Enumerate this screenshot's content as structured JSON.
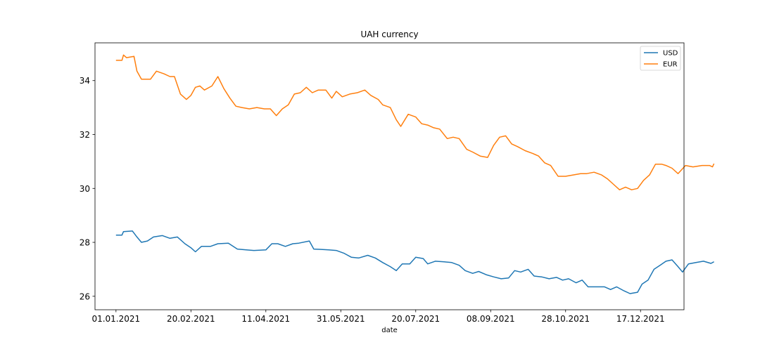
{
  "chart_data": {
    "type": "line",
    "title": "UAH currency",
    "xlabel": "date",
    "ylabel": "",
    "x_ticks": [
      "01.01.2021",
      "20.02.2021",
      "11.04.2021",
      "31.05.2021",
      "20.07.2021",
      "08.09.2021",
      "28.10.2021",
      "17.12.2021"
    ],
    "xlim": [
      "2020-12-18",
      "2022-01-15"
    ],
    "y_ticks": [
      "26",
      "28",
      "30",
      "32",
      "34"
    ],
    "ylim": [
      25.5,
      35.4
    ],
    "grid": false,
    "legend": "top-right",
    "series": [
      {
        "name": "USD",
        "color": "#1f77b4",
        "points": [
          [
            "2021-01-01",
            28.27
          ],
          [
            "2021-01-05",
            28.27
          ],
          [
            "2021-01-06",
            28.4
          ],
          [
            "2021-01-12",
            28.42
          ],
          [
            "2021-01-15",
            28.2
          ],
          [
            "2021-01-18",
            28.0
          ],
          [
            "2021-01-22",
            28.05
          ],
          [
            "2021-01-26",
            28.2
          ],
          [
            "2021-02-01",
            28.25
          ],
          [
            "2021-02-06",
            28.15
          ],
          [
            "2021-02-11",
            28.2
          ],
          [
            "2021-02-16",
            27.95
          ],
          [
            "2021-02-20",
            27.8
          ],
          [
            "2021-02-23",
            27.65
          ],
          [
            "2021-02-27",
            27.85
          ],
          [
            "2021-03-05",
            27.85
          ],
          [
            "2021-03-10",
            27.95
          ],
          [
            "2021-03-17",
            27.97
          ],
          [
            "2021-03-23",
            27.75
          ],
          [
            "2021-03-29",
            27.72
          ],
          [
            "2021-04-03",
            27.7
          ],
          [
            "2021-04-11",
            27.72
          ],
          [
            "2021-04-15",
            27.95
          ],
          [
            "2021-04-19",
            27.95
          ],
          [
            "2021-04-24",
            27.85
          ],
          [
            "2021-04-29",
            27.95
          ],
          [
            "2021-05-03",
            27.97
          ],
          [
            "2021-05-10",
            28.05
          ],
          [
            "2021-05-13",
            27.75
          ],
          [
            "2021-05-17",
            27.74
          ],
          [
            "2021-05-23",
            27.72
          ],
          [
            "2021-05-28",
            27.7
          ],
          [
            "2021-06-02",
            27.6
          ],
          [
            "2021-06-07",
            27.45
          ],
          [
            "2021-06-12",
            27.42
          ],
          [
            "2021-06-18",
            27.52
          ],
          [
            "2021-06-23",
            27.42
          ],
          [
            "2021-06-28",
            27.25
          ],
          [
            "2021-07-03",
            27.1
          ],
          [
            "2021-07-07",
            26.95
          ],
          [
            "2021-07-11",
            27.2
          ],
          [
            "2021-07-16",
            27.2
          ],
          [
            "2021-07-20",
            27.45
          ],
          [
            "2021-07-25",
            27.4
          ],
          [
            "2021-07-28",
            27.2
          ],
          [
            "2021-08-02",
            27.3
          ],
          [
            "2021-08-08",
            27.28
          ],
          [
            "2021-08-13",
            27.25
          ],
          [
            "2021-08-18",
            27.15
          ],
          [
            "2021-08-22",
            26.95
          ],
          [
            "2021-08-27",
            26.85
          ],
          [
            "2021-08-31",
            26.92
          ],
          [
            "2021-09-05",
            26.8
          ],
          [
            "2021-09-10",
            26.72
          ],
          [
            "2021-09-15",
            26.65
          ],
          [
            "2021-09-20",
            26.68
          ],
          [
            "2021-09-24",
            26.95
          ],
          [
            "2021-09-28",
            26.9
          ],
          [
            "2021-10-03",
            27.0
          ],
          [
            "2021-10-07",
            26.75
          ],
          [
            "2021-10-12",
            26.72
          ],
          [
            "2021-10-17",
            26.65
          ],
          [
            "2021-10-22",
            26.7
          ],
          [
            "2021-10-26",
            26.6
          ],
          [
            "2021-10-30",
            26.65
          ],
          [
            "2021-11-04",
            26.5
          ],
          [
            "2021-11-08",
            26.6
          ],
          [
            "2021-11-12",
            26.35
          ],
          [
            "2021-11-18",
            26.35
          ],
          [
            "2021-11-23",
            26.35
          ],
          [
            "2021-11-27",
            26.25
          ],
          [
            "2021-12-01",
            26.35
          ],
          [
            "2021-12-06",
            26.2
          ],
          [
            "2021-12-10",
            26.1
          ],
          [
            "2021-12-15",
            26.15
          ],
          [
            "2021-12-18",
            26.45
          ],
          [
            "2021-12-22",
            26.6
          ],
          [
            "2021-12-26",
            27.0
          ],
          [
            "2021-12-30",
            27.15
          ],
          [
            "2022-01-03",
            27.3
          ],
          [
            "2022-01-07",
            27.35
          ],
          [
            "2022-01-11",
            27.1
          ],
          [
            "2022-01-14",
            26.9
          ],
          [
            "2022-01-18",
            27.2
          ],
          [
            "2022-01-23",
            27.25
          ],
          [
            "2022-01-28",
            27.3
          ],
          [
            "2022-02-02",
            27.22
          ],
          [
            "2022-02-04",
            27.28
          ]
        ]
      },
      {
        "name": "EUR",
        "color": "#ff7f0e",
        "points": [
          [
            "2021-01-01",
            34.75
          ],
          [
            "2021-01-05",
            34.75
          ],
          [
            "2021-01-06",
            34.95
          ],
          [
            "2021-01-08",
            34.85
          ],
          [
            "2021-01-13",
            34.9
          ],
          [
            "2021-01-15",
            34.35
          ],
          [
            "2021-01-18",
            34.05
          ],
          [
            "2021-01-24",
            34.05
          ],
          [
            "2021-01-28",
            34.35
          ],
          [
            "2021-02-02",
            34.25
          ],
          [
            "2021-02-06",
            34.15
          ],
          [
            "2021-02-09",
            34.15
          ],
          [
            "2021-02-13",
            33.5
          ],
          [
            "2021-02-17",
            33.3
          ],
          [
            "2021-02-20",
            33.45
          ],
          [
            "2021-02-23",
            33.75
          ],
          [
            "2021-02-26",
            33.8
          ],
          [
            "2021-03-01",
            33.65
          ],
          [
            "2021-03-06",
            33.8
          ],
          [
            "2021-03-10",
            34.15
          ],
          [
            "2021-03-14",
            33.7
          ],
          [
            "2021-03-18",
            33.35
          ],
          [
            "2021-03-22",
            33.05
          ],
          [
            "2021-03-26",
            33.0
          ],
          [
            "2021-03-31",
            32.95
          ],
          [
            "2021-04-05",
            33.0
          ],
          [
            "2021-04-10",
            32.95
          ],
          [
            "2021-04-14",
            32.95
          ],
          [
            "2021-04-18",
            32.7
          ],
          [
            "2021-04-22",
            32.95
          ],
          [
            "2021-04-26",
            33.1
          ],
          [
            "2021-04-30",
            33.5
          ],
          [
            "2021-05-04",
            33.55
          ],
          [
            "2021-05-08",
            33.75
          ],
          [
            "2021-05-12",
            33.55
          ],
          [
            "2021-05-16",
            33.65
          ],
          [
            "2021-05-21",
            33.65
          ],
          [
            "2021-05-25",
            33.35
          ],
          [
            "2021-05-28",
            33.6
          ],
          [
            "2021-06-01",
            33.4
          ],
          [
            "2021-06-06",
            33.5
          ],
          [
            "2021-06-11",
            33.55
          ],
          [
            "2021-06-16",
            33.65
          ],
          [
            "2021-06-20",
            33.45
          ],
          [
            "2021-06-25",
            33.3
          ],
          [
            "2021-06-28",
            33.1
          ],
          [
            "2021-07-03",
            33.0
          ],
          [
            "2021-07-07",
            32.55
          ],
          [
            "2021-07-10",
            32.3
          ],
          [
            "2021-07-15",
            32.75
          ],
          [
            "2021-07-20",
            32.65
          ],
          [
            "2021-07-24",
            32.4
          ],
          [
            "2021-07-28",
            32.35
          ],
          [
            "2021-08-01",
            32.25
          ],
          [
            "2021-08-05",
            32.2
          ],
          [
            "2021-08-10",
            31.85
          ],
          [
            "2021-08-14",
            31.9
          ],
          [
            "2021-08-18",
            31.85
          ],
          [
            "2021-08-23",
            31.45
          ],
          [
            "2021-08-27",
            31.35
          ],
          [
            "2021-09-01",
            31.2
          ],
          [
            "2021-09-06",
            31.15
          ],
          [
            "2021-09-10",
            31.6
          ],
          [
            "2021-09-14",
            31.9
          ],
          [
            "2021-09-18",
            31.95
          ],
          [
            "2021-09-22",
            31.65
          ],
          [
            "2021-09-26",
            31.55
          ],
          [
            "2021-10-01",
            31.4
          ],
          [
            "2021-10-06",
            31.3
          ],
          [
            "2021-10-10",
            31.2
          ],
          [
            "2021-10-14",
            30.95
          ],
          [
            "2021-10-18",
            30.85
          ],
          [
            "2021-10-23",
            30.45
          ],
          [
            "2021-10-28",
            30.45
          ],
          [
            "2021-11-02",
            30.5
          ],
          [
            "2021-11-07",
            30.55
          ],
          [
            "2021-11-11",
            30.55
          ],
          [
            "2021-11-16",
            30.6
          ],
          [
            "2021-11-21",
            30.5
          ],
          [
            "2021-11-25",
            30.35
          ],
          [
            "2021-11-29",
            30.15
          ],
          [
            "2021-12-03",
            29.95
          ],
          [
            "2021-12-07",
            30.05
          ],
          [
            "2021-12-11",
            29.95
          ],
          [
            "2021-12-15",
            30.0
          ],
          [
            "2021-12-19",
            30.3
          ],
          [
            "2021-12-23",
            30.5
          ],
          [
            "2021-12-27",
            30.9
          ],
          [
            "2021-12-31",
            30.9
          ],
          [
            "2022-01-03",
            30.85
          ],
          [
            "2022-01-07",
            30.75
          ],
          [
            "2022-01-11",
            30.55
          ],
          [
            "2022-01-16",
            30.85
          ],
          [
            "2022-01-21",
            30.8
          ],
          [
            "2022-01-27",
            30.85
          ],
          [
            "2022-02-01",
            30.85
          ],
          [
            "2022-02-03",
            30.8
          ],
          [
            "2022-02-04",
            30.92
          ]
        ]
      }
    ]
  }
}
